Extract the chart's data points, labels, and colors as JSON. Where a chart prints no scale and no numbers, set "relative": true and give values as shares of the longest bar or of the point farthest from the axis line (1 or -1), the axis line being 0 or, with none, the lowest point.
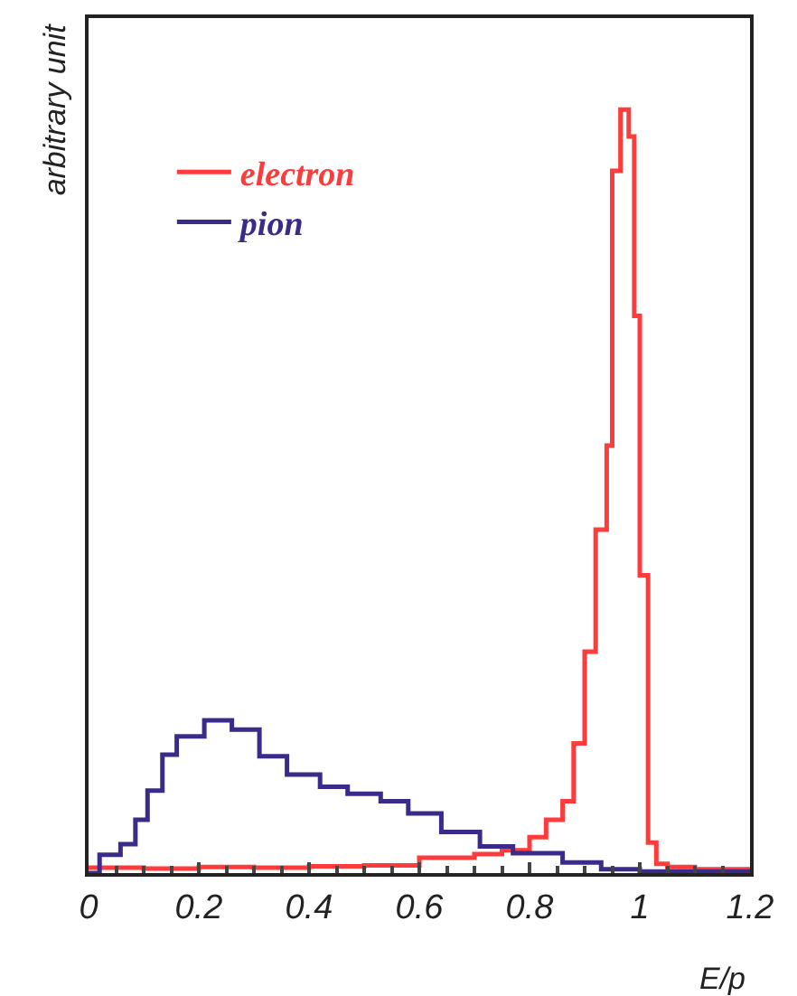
{
  "chart_data": {
    "type": "step",
    "xlabel": "E/p",
    "ylabel": "arbitrary unit",
    "relative": true,
    "xlim": [
      0,
      1.2
    ],
    "xticks": [
      0,
      0.2,
      0.4,
      0.6,
      0.8,
      1,
      1.2
    ],
    "tick_labels": "x",
    "legend": "top left",
    "series": [
      {
        "name": "electron",
        "color": "#ff3b3b",
        "x": [
          0,
          0.1,
          0.2,
          0.3,
          0.4,
          0.5,
          0.6,
          0.65,
          0.7,
          0.75,
          0.8,
          0.83,
          0.86,
          0.88,
          0.9,
          0.92,
          0.94,
          0.95,
          0.965,
          0.98,
          0.99,
          1.0,
          1.015,
          1.03,
          1.05,
          1.1,
          1.15,
          1.2
        ],
        "values": [
          0.007,
          0.006,
          0.008,
          0.007,
          0.009,
          0.01,
          0.02,
          0.02,
          0.025,
          0.03,
          0.047,
          0.07,
          0.094,
          0.17,
          0.29,
          0.45,
          0.56,
          0.92,
          1.0,
          0.965,
          0.73,
          0.39,
          0.04,
          0.012,
          0.008,
          0.005,
          0.005,
          0.005
        ]
      },
      {
        "name": "pion",
        "color": "#3a2a8a",
        "x": [
          0,
          0.02,
          0.058,
          0.085,
          0.107,
          0.134,
          0.16,
          0.21,
          0.26,
          0.31,
          0.36,
          0.42,
          0.47,
          0.53,
          0.58,
          0.64,
          0.71,
          0.77,
          0.86,
          0.93,
          1.0,
          1.2
        ],
        "values": [
          0,
          0.024,
          0.038,
          0.07,
          0.108,
          0.155,
          0.179,
          0.2,
          0.188,
          0.153,
          0.129,
          0.113,
          0.104,
          0.094,
          0.078,
          0.054,
          0.035,
          0.026,
          0.014,
          0.005,
          0.002,
          0
        ]
      }
    ]
  }
}
